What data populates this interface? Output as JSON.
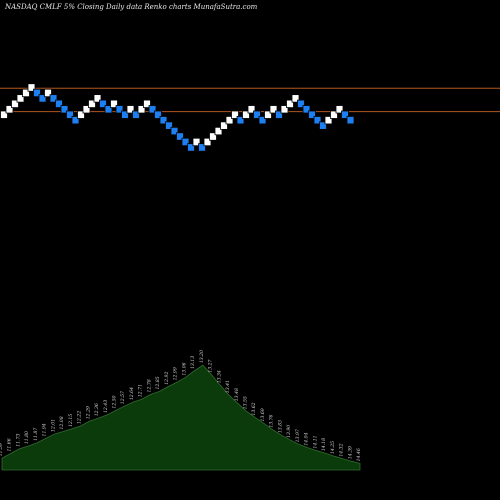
{
  "chart_data": {
    "type": "renko",
    "title": "NASDAQ CMLF  5% Closing Daily data  Renko  charts MunafaSutra.com",
    "colors": {
      "background": "#000000",
      "up_brick": "#ffffff",
      "down_brick": "#1e7ff0",
      "brick_border": "#000000",
      "reference_line": "#b5561f",
      "volume_fill": "#0b3a0b",
      "volume_stroke": "#2f6b2f"
    },
    "reference_levels": [
      11.62,
      11.32
    ],
    "bricks": [
      {
        "dir": "up",
        "level": 11.28
      },
      {
        "dir": "up",
        "level": 11.35
      },
      {
        "dir": "up",
        "level": 11.42
      },
      {
        "dir": "up",
        "level": 11.49
      },
      {
        "dir": "up",
        "level": 11.56
      },
      {
        "dir": "up",
        "level": 11.63
      },
      {
        "dir": "down",
        "level": 11.56
      },
      {
        "dir": "down",
        "level": 11.49
      },
      {
        "dir": "up",
        "level": 11.56
      },
      {
        "dir": "down",
        "level": 11.49
      },
      {
        "dir": "down",
        "level": 11.42
      },
      {
        "dir": "down",
        "level": 11.35
      },
      {
        "dir": "down",
        "level": 11.28
      },
      {
        "dir": "down",
        "level": 11.21
      },
      {
        "dir": "up",
        "level": 11.28
      },
      {
        "dir": "up",
        "level": 11.35
      },
      {
        "dir": "up",
        "level": 11.42
      },
      {
        "dir": "up",
        "level": 11.49
      },
      {
        "dir": "down",
        "level": 11.42
      },
      {
        "dir": "down",
        "level": 11.35
      },
      {
        "dir": "up",
        "level": 11.42
      },
      {
        "dir": "down",
        "level": 11.35
      },
      {
        "dir": "down",
        "level": 11.28
      },
      {
        "dir": "up",
        "level": 11.35
      },
      {
        "dir": "down",
        "level": 11.28
      },
      {
        "dir": "up",
        "level": 11.35
      },
      {
        "dir": "up",
        "level": 11.42
      },
      {
        "dir": "down",
        "level": 11.35
      },
      {
        "dir": "down",
        "level": 11.28
      },
      {
        "dir": "down",
        "level": 11.21
      },
      {
        "dir": "down",
        "level": 11.14
      },
      {
        "dir": "down",
        "level": 11.07
      },
      {
        "dir": "down",
        "level": 11.0
      },
      {
        "dir": "down",
        "level": 10.93
      },
      {
        "dir": "down",
        "level": 10.86
      },
      {
        "dir": "up",
        "level": 10.93
      },
      {
        "dir": "down",
        "level": 10.86
      },
      {
        "dir": "up",
        "level": 10.93
      },
      {
        "dir": "up",
        "level": 11.0
      },
      {
        "dir": "up",
        "level": 11.07
      },
      {
        "dir": "up",
        "level": 11.14
      },
      {
        "dir": "up",
        "level": 11.21
      },
      {
        "dir": "up",
        "level": 11.28
      },
      {
        "dir": "down",
        "level": 11.21
      },
      {
        "dir": "up",
        "level": 11.28
      },
      {
        "dir": "up",
        "level": 11.35
      },
      {
        "dir": "down",
        "level": 11.28
      },
      {
        "dir": "down",
        "level": 11.21
      },
      {
        "dir": "up",
        "level": 11.28
      },
      {
        "dir": "up",
        "level": 11.35
      },
      {
        "dir": "down",
        "level": 11.28
      },
      {
        "dir": "up",
        "level": 11.35
      },
      {
        "dir": "up",
        "level": 11.42
      },
      {
        "dir": "up",
        "level": 11.49
      },
      {
        "dir": "down",
        "level": 11.42
      },
      {
        "dir": "down",
        "level": 11.35
      },
      {
        "dir": "down",
        "level": 11.28
      },
      {
        "dir": "down",
        "level": 11.21
      },
      {
        "dir": "down",
        "level": 11.14
      },
      {
        "dir": "up",
        "level": 11.21
      },
      {
        "dir": "up",
        "level": 11.28
      },
      {
        "dir": "up",
        "level": 11.35
      },
      {
        "dir": "down",
        "level": 11.28
      },
      {
        "dir": "down",
        "level": 11.21
      }
    ],
    "price_range": [
      8.0,
      12.6
    ],
    "volume_range": [
      0,
      30
    ],
    "volume": [
      {
        "v": 3.2,
        "label": "11.59"
      },
      {
        "v": 4.5,
        "label": "11.66"
      },
      {
        "v": 5.8,
        "label": "11.73"
      },
      {
        "v": 6.5,
        "label": "11.80"
      },
      {
        "v": 7.4,
        "label": "11.87"
      },
      {
        "v": 8.6,
        "label": "11.94"
      },
      {
        "v": 9.8,
        "label": "12.01"
      },
      {
        "v": 10.5,
        "label": "12.08"
      },
      {
        "v": 11.2,
        "label": "12.15"
      },
      {
        "v": 12.0,
        "label": "12.22"
      },
      {
        "v": 13.3,
        "label": "12.29"
      },
      {
        "v": 14.1,
        "label": "12.36"
      },
      {
        "v": 15.0,
        "label": "12.43"
      },
      {
        "v": 16.2,
        "label": "12.50"
      },
      {
        "v": 17.4,
        "label": "12.57"
      },
      {
        "v": 18.5,
        "label": "12.64"
      },
      {
        "v": 19.3,
        "label": "12.71"
      },
      {
        "v": 20.6,
        "label": "12.78"
      },
      {
        "v": 21.4,
        "label": "12.85"
      },
      {
        "v": 22.7,
        "label": "12.92"
      },
      {
        "v": 23.9,
        "label": "12.99"
      },
      {
        "v": 25.2,
        "label": "13.06"
      },
      {
        "v": 27.0,
        "label": "13.13"
      },
      {
        "v": 28.6,
        "label": "13.20"
      },
      {
        "v": 26.0,
        "label": "13.27"
      },
      {
        "v": 23.1,
        "label": "13.34"
      },
      {
        "v": 20.4,
        "label": "13.41"
      },
      {
        "v": 18.2,
        "label": "13.48"
      },
      {
        "v": 16.0,
        "label": "13.55"
      },
      {
        "v": 14.3,
        "label": "13.62"
      },
      {
        "v": 12.7,
        "label": "13.69"
      },
      {
        "v": 11.0,
        "label": "13.76"
      },
      {
        "v": 9.5,
        "label": "13.83"
      },
      {
        "v": 8.2,
        "label": "13.90"
      },
      {
        "v": 7.0,
        "label": "13.97"
      },
      {
        "v": 6.1,
        "label": "14.04"
      },
      {
        "v": 5.3,
        "label": "14.11"
      },
      {
        "v": 4.6,
        "label": "14.18"
      },
      {
        "v": 3.8,
        "label": "14.25"
      },
      {
        "v": 3.1,
        "label": "14.32"
      },
      {
        "v": 2.4,
        "label": "14.39"
      },
      {
        "v": 1.8,
        "label": "14.46"
      }
    ]
  }
}
